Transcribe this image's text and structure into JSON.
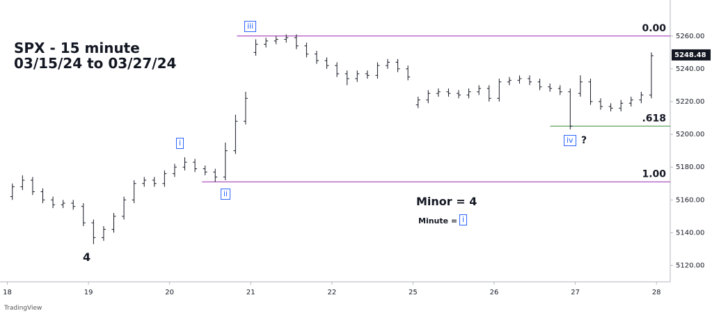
{
  "chart_data": {
    "type": "ohlc",
    "title": "SPX - 15 minute",
    "subtitle": "03/15/24 to 03/27/24",
    "x": [
      0.0625,
      0.1875,
      0.3125,
      0.4375,
      0.5625,
      0.6875,
      0.8125,
      0.9375,
      1.0625,
      1.1875,
      1.3125,
      1.4375,
      1.5625,
      1.6875,
      1.8125,
      1.9375,
      2.0625,
      2.1875,
      2.3125,
      2.4375,
      2.5625,
      2.6875,
      2.8125,
      2.9375,
      3.0625,
      3.1875,
      3.3125,
      3.4375,
      3.5625,
      3.6875,
      3.8125,
      3.9375,
      4.0625,
      4.1875,
      4.3125,
      4.4375,
      4.5625,
      4.6875,
      4.8125,
      4.9375,
      5.0625,
      5.1875,
      5.3125,
      5.4375,
      5.5625,
      5.6875,
      5.8125,
      5.9375,
      6.0625,
      6.1875,
      6.3125,
      6.4375,
      6.5625,
      6.6875,
      6.8125,
      6.9375,
      7.0625,
      7.1875,
      7.3125,
      7.4375,
      7.5625,
      7.6875,
      7.8125,
      7.9375
    ],
    "open": [
      5162,
      5168,
      5172,
      5165,
      5160,
      5157,
      5158,
      5156,
      5146,
      5137,
      5142,
      5150,
      5160,
      5170,
      5172,
      5170,
      5176,
      5180,
      5183,
      5179,
      5177,
      5174,
      5190,
      5208,
      5250,
      5255,
      5257,
      5258,
      5259,
      5254,
      5249,
      5245,
      5242,
      5237,
      5234,
      5237,
      5236,
      5242,
      5244,
      5240,
      5218,
      5221,
      5225,
      5226,
      5225,
      5224,
      5226,
      5228,
      5222,
      5232,
      5233,
      5234,
      5232,
      5229,
      5228,
      5226,
      5225,
      5232,
      5220,
      5217,
      5216,
      5219,
      5221,
      5224
    ],
    "high": [
      5170,
      5175,
      5174,
      5167,
      5162,
      5160,
      5160,
      5158,
      5148,
      5144,
      5152,
      5162,
      5172,
      5174,
      5174,
      5178,
      5182,
      5186,
      5185,
      5181,
      5179,
      5195,
      5212,
      5226,
      5258,
      5259,
      5260,
      5261,
      5261,
      5256,
      5251,
      5247,
      5244,
      5239,
      5239,
      5239,
      5244,
      5246,
      5246,
      5242,
      5223,
      5227,
      5228,
      5228,
      5227,
      5228,
      5230,
      5230,
      5234,
      5235,
      5236,
      5236,
      5234,
      5231,
      5230,
      5228,
      5236,
      5234,
      5222,
      5219,
      5221,
      5223,
      5226,
      5250
    ],
    "low": [
      5160,
      5166,
      5163,
      5158,
      5155,
      5155,
      5154,
      5144,
      5133,
      5135,
      5140,
      5148,
      5158,
      5168,
      5168,
      5168,
      5174,
      5178,
      5177,
      5175,
      5171,
      5172,
      5188,
      5206,
      5248,
      5253,
      5255,
      5256,
      5252,
      5247,
      5243,
      5240,
      5235,
      5230,
      5232,
      5234,
      5234,
      5240,
      5238,
      5233,
      5216,
      5219,
      5223,
      5223,
      5222,
      5222,
      5224,
      5220,
      5220,
      5230,
      5231,
      5230,
      5227,
      5226,
      5224,
      5203,
      5223,
      5218,
      5215,
      5214,
      5214,
      5217,
      5219,
      5222
    ],
    "close": [
      5168,
      5172,
      5165,
      5160,
      5157,
      5158,
      5156,
      5146,
      5137,
      5142,
      5150,
      5160,
      5170,
      5172,
      5170,
      5176,
      5180,
      5183,
      5179,
      5177,
      5174,
      5190,
      5208,
      5222,
      5255,
      5257,
      5258,
      5259,
      5254,
      5249,
      5245,
      5242,
      5237,
      5234,
      5237,
      5236,
      5242,
      5244,
      5240,
      5235,
      5221,
      5225,
      5226,
      5225,
      5224,
      5226,
      5228,
      5222,
      5232,
      5233,
      5234,
      5232,
      5229,
      5228,
      5226,
      5205,
      5232,
      5220,
      5217,
      5216,
      5219,
      5221,
      5224,
      5248
    ],
    "color": "#131722",
    "xlim": [
      -0.09,
      8.17
    ],
    "ylim": [
      5110,
      5282
    ],
    "xticks": [
      {
        "value": 0,
        "label": "18"
      },
      {
        "value": 1,
        "label": "19"
      },
      {
        "value": 2,
        "label": "20"
      },
      {
        "value": 3,
        "label": "21"
      },
      {
        "value": 4,
        "label": "22"
      },
      {
        "value": 5,
        "label": "25"
      },
      {
        "value": 6,
        "label": "26"
      },
      {
        "value": 7,
        "label": "27"
      },
      {
        "value": 8,
        "label": "28"
      }
    ],
    "yticks": [
      {
        "value": 5120,
        "label": "5120.00"
      },
      {
        "value": 5140,
        "label": "5140.00"
      },
      {
        "value": 5160,
        "label": "5160.00"
      },
      {
        "value": 5180,
        "label": "5180.00"
      },
      {
        "value": 5200,
        "label": "5200.00"
      },
      {
        "value": 5220,
        "label": "5220.00"
      },
      {
        "value": 5240,
        "label": "5240.00"
      },
      {
        "value": 5260,
        "label": "5260.00"
      }
    ],
    "levels": [
      {
        "value": 5260,
        "label": "0.00",
        "color": "#9c27b0"
      },
      {
        "value": 5205,
        "label": ".618",
        "color": "#388e3c"
      },
      {
        "value": 5171,
        "label": "1.00",
        "color": "#9c27b0"
      }
    ],
    "last_price": 5248.48,
    "wave_labels": [
      "iii",
      "i",
      "ii",
      "iv",
      "4"
    ],
    "wave_question": "?",
    "notes": [
      "Minor = 4",
      "Minute = ",
      "i"
    ],
    "brand": "TradingView"
  }
}
